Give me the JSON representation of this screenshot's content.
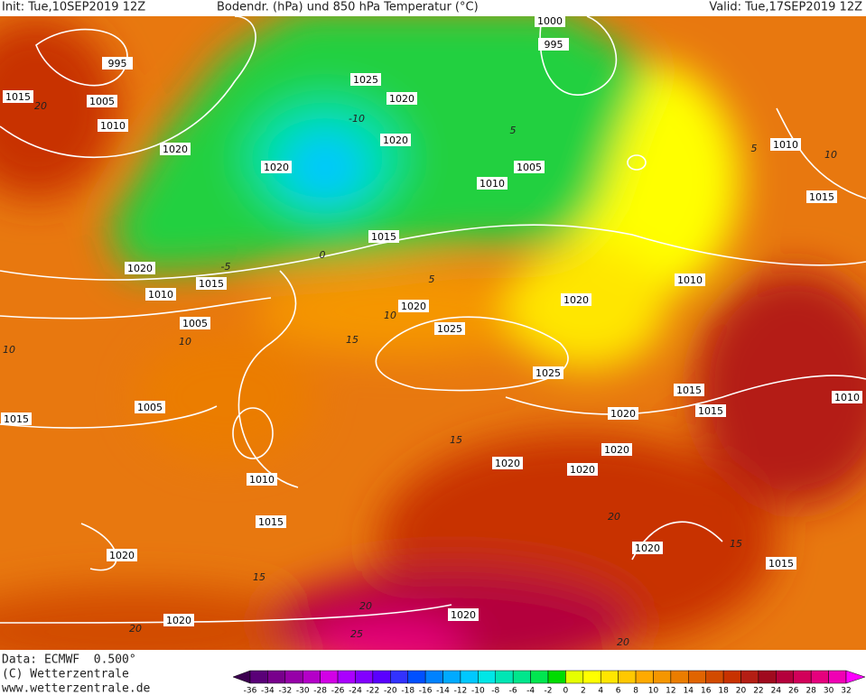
{
  "header": {
    "init": "Init: Tue,10SEP2019 12Z",
    "title": "Bodendr. (hPa) und 850 hPa Temperatur (°C)",
    "valid": "Valid: Tue,17SEP2019 12Z"
  },
  "map": {
    "isobar_labels": [
      "995",
      "1005",
      "1010",
      "1015",
      "1020",
      "1025",
      "1020",
      "1020",
      "1020",
      "1000",
      "995",
      "1005",
      "1010",
      "1015",
      "1020",
      "1010",
      "1015",
      "1005",
      "1020",
      "1025",
      "1020",
      "1010",
      "1010",
      "1015",
      "1025",
      "1015",
      "1015",
      "1010",
      "1020",
      "1020",
      "1020",
      "1020",
      "1005",
      "1015",
      "1010",
      "1015",
      "1020",
      "1020",
      "1015",
      "1020",
      "1020"
    ],
    "isotherm_labels": [
      "-10",
      "5",
      "0",
      "-5",
      "5",
      "10",
      "15",
      "10",
      "10",
      "15",
      "20",
      "15",
      "15",
      "20",
      "20",
      "25",
      "20",
      "10",
      "5",
      "20"
    ]
  },
  "footer": {
    "data": "Data: ECMWF  0.500°",
    "copyright": "(C) Wetterzentrale",
    "url": "www.wetterzentrale.de"
  },
  "colorbar": {
    "ticks": [
      -36,
      -34,
      -32,
      -30,
      -28,
      -26,
      -24,
      -22,
      -20,
      -18,
      -16,
      -14,
      -12,
      -10,
      -8,
      -6,
      -4,
      -2,
      0,
      2,
      4,
      6,
      8,
      10,
      12,
      14,
      16,
      18,
      20,
      22,
      24,
      26,
      28,
      30,
      32
    ],
    "colors": [
      "#3c0050",
      "#5a0078",
      "#78008c",
      "#9600a8",
      "#b400c8",
      "#d200e6",
      "#aa00ff",
      "#8200ff",
      "#5a00ff",
      "#3232ff",
      "#0050ff",
      "#0082ff",
      "#00aaff",
      "#00c8ff",
      "#00e6e6",
      "#00e6b4",
      "#00e68c",
      "#00e650",
      "#00dc00",
      "#e6ff00",
      "#ffff00",
      "#ffe600",
      "#ffc800",
      "#ffaa00",
      "#f59600",
      "#eb7d00",
      "#e16400",
      "#d24b00",
      "#c83200",
      "#b41e14",
      "#a00a1e",
      "#b4003c",
      "#d2005a",
      "#e6007d",
      "#f000b4",
      "#ff00ff"
    ]
  }
}
